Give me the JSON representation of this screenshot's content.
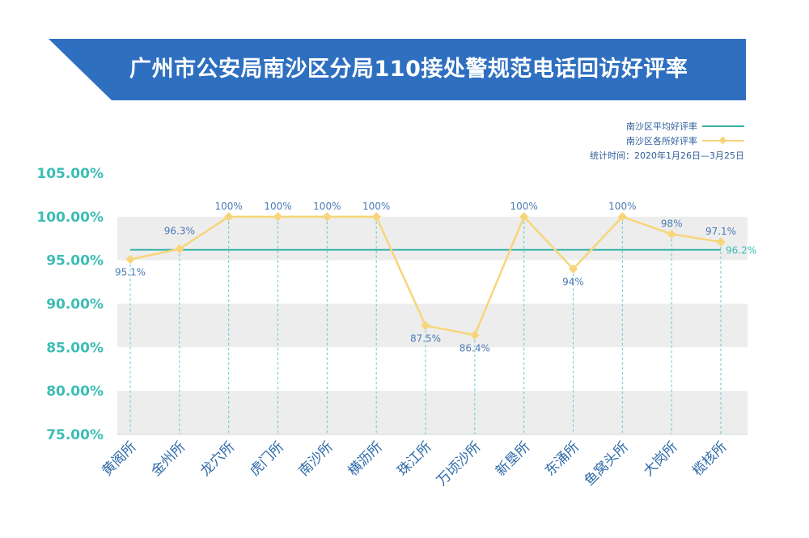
{
  "chart_data": {
    "type": "line",
    "title": "广州市公安局南沙区分局110接处警规范电话回访好评率",
    "categories": [
      "黄阁所",
      "金州所",
      "龙穴所",
      "虎门所",
      "南沙所",
      "横沥所",
      "珠江所",
      "万顷沙所",
      "新垦所",
      "东涌所",
      "鱼窝头所",
      "大岗所",
      "榄核所"
    ],
    "series": [
      {
        "name": "南沙区各所好评率",
        "values": [
          95.1,
          96.3,
          100,
          100,
          100,
          100,
          87.5,
          86.4,
          100,
          94,
          100,
          98,
          97.1
        ],
        "labels": [
          "95.1%",
          "96.3%",
          "100%",
          "100%",
          "100%",
          "100%",
          "87.5%",
          "86.4%",
          "100%",
          "94%",
          "100%",
          "98%",
          "97.1%"
        ],
        "color": "#f7d57a"
      },
      {
        "name": "南沙区平均好评率",
        "value": 96.2,
        "label": "96.2%",
        "color": "#3bb3aa"
      }
    ],
    "yticks": [
      "105.00%",
      "100.00%",
      "95.00%",
      "90.00%",
      "85.00%",
      "80.00%",
      "75.00%"
    ],
    "ylim": [
      75,
      105
    ],
    "note": "统计时间：2020年1月26日—3月25日",
    "legend": "top-right"
  },
  "colors": {
    "banner": "#2f6fc0",
    "band": "#ededed",
    "tick": "#3bbdb5",
    "category": "#2d6aa8"
  }
}
